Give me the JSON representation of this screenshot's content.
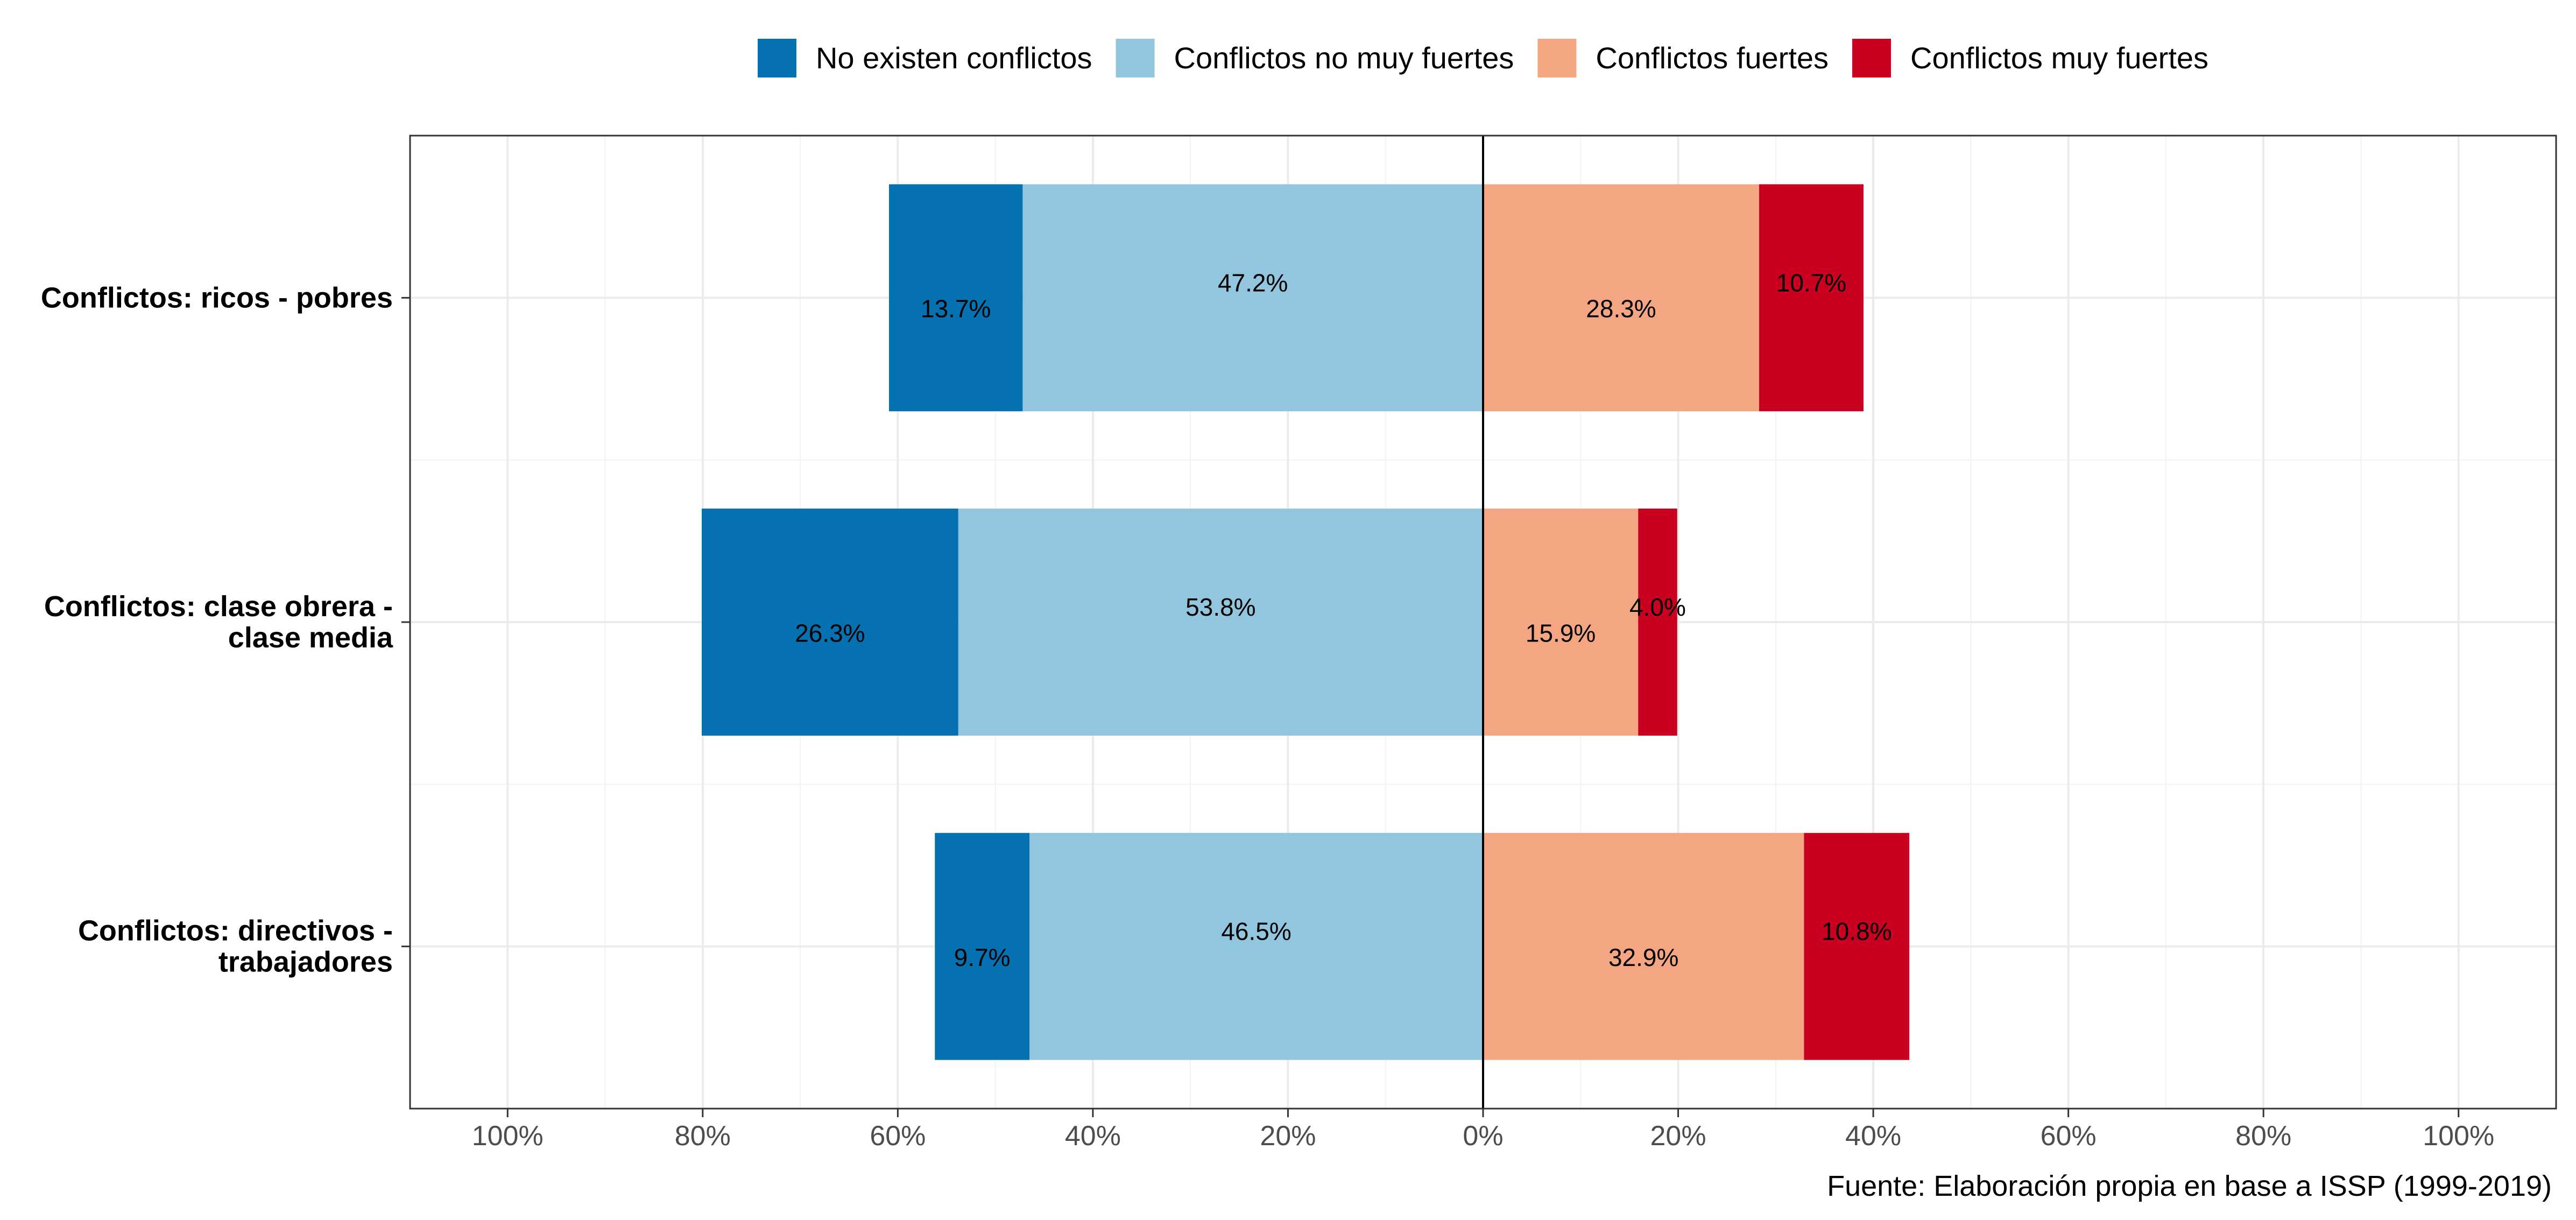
{
  "chart_data": {
    "type": "bar",
    "orientation": "horizontal",
    "layout": "diverging-stacked",
    "categories": [
      "Conflictos: ricos - pobres",
      "Conflictos: clase obrera -\nclase media",
      "Conflictos: directivos -\ntrabajadores"
    ],
    "series": [
      {
        "name": "No existen conflictos",
        "side": "left",
        "color": "#0571B0",
        "values": [
          13.7,
          26.3,
          9.7
        ],
        "labels": [
          "13.7%",
          "26.3%",
          "9.7%"
        ]
      },
      {
        "name": "Conflictos no muy fuertes",
        "side": "left",
        "color": "#92C5DE",
        "values": [
          47.2,
          53.8,
          46.5
        ],
        "labels": [
          "47.2%",
          "53.8%",
          "46.5%"
        ]
      },
      {
        "name": "Conflictos fuertes",
        "side": "right",
        "color": "#F4A582",
        "values": [
          28.3,
          15.9,
          32.9
        ],
        "labels": [
          "28.3%",
          "15.9%",
          "32.9%"
        ]
      },
      {
        "name": "Conflictos muy fuertes",
        "side": "right",
        "color": "#CA0020",
        "values": [
          10.7,
          4.0,
          10.8
        ],
        "labels": [
          "10.7%",
          "4.0%",
          "10.8%"
        ]
      }
    ],
    "xlim": [
      -110,
      110
    ],
    "xticks": [
      -100,
      -80,
      -60,
      -40,
      -20,
      0,
      20,
      40,
      60,
      80,
      100
    ],
    "xtick_labels": [
      "100%",
      "80%",
      "60%",
      "40%",
      "20%",
      "0%",
      "20%",
      "40%",
      "60%",
      "80%",
      "100%"
    ],
    "title": "",
    "xlabel": "",
    "ylabel": "",
    "legend_position": "top",
    "grid": true,
    "caption": "Fuente: Elaboración propia en base a ISSP (1999-2019)"
  }
}
